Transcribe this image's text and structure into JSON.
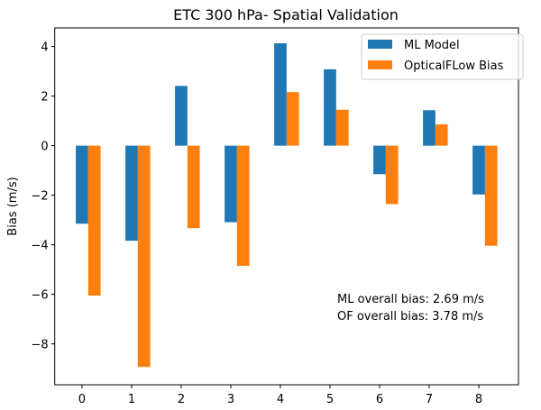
{
  "chart_data": {
    "type": "bar",
    "title": "ETC 300 hPa- Spatial Validation",
    "xlabel": "",
    "ylabel": "Bias (m/s)",
    "categories": [
      "0",
      "1",
      "2",
      "3",
      "4",
      "5",
      "6",
      "7",
      "8"
    ],
    "series": [
      {
        "name": "ML Model",
        "color": "#1f77b4",
        "values": [
          -3.15,
          -3.84,
          2.41,
          -3.09,
          4.13,
          3.08,
          -1.15,
          1.43,
          -1.97
        ]
      },
      {
        "name": "OpticalFLow Bias",
        "color": "#ff7f0e",
        "values": [
          -6.05,
          -8.93,
          -3.33,
          -4.85,
          2.16,
          1.45,
          -2.36,
          0.86,
          -4.04
        ]
      }
    ],
    "ylim": [
      -9.65,
      4.75
    ],
    "xlim": [
      -0.55,
      8.8
    ],
    "yticks": [
      4,
      2,
      0,
      -2,
      -4,
      -6,
      -8
    ],
    "ytick_labels": [
      "4",
      "2",
      "0",
      "−2",
      "−4",
      "−6",
      "−8"
    ],
    "xticks": [
      0,
      1,
      2,
      3,
      4,
      5,
      6,
      7,
      8
    ],
    "grid": false,
    "legend_position": "top-right",
    "annotations": [
      "ML overall bias: 2.69 m/s",
      "OF overall bias: 3.78 m/s"
    ]
  }
}
